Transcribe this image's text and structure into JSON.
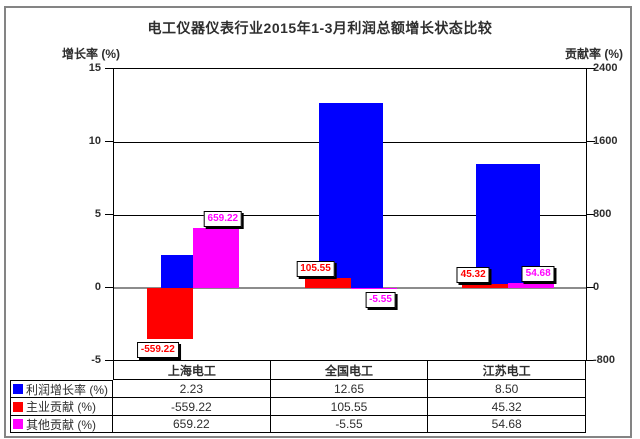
{
  "chart_data": {
    "type": "bar",
    "title": "电工仪器仪表行业2015年1-3月利润总额增长状态比较",
    "categories": [
      "上海电工",
      "全国电工",
      "江苏电工"
    ],
    "series": [
      {
        "name": "利润增长率 (%)",
        "color": "#0000ff",
        "axis": "left",
        "values": [
          2.23,
          12.65,
          8.5
        ],
        "value_labels_shown": false
      },
      {
        "name": "主业贡献 (%)",
        "color": "#ff0000",
        "axis": "right",
        "values": [
          -559.22,
          105.55,
          45.32
        ],
        "value_labels_shown": true
      },
      {
        "name": "其他贡献 (%)",
        "color": "#ff00ff",
        "axis": "right",
        "values": [
          659.22,
          -5.55,
          54.68
        ],
        "value_labels_shown": true
      }
    ],
    "left_axis": {
      "label": "增长率 (%)",
      "ticks": [
        15,
        10,
        5,
        0,
        -5
      ],
      "range": [
        -5,
        15
      ]
    },
    "right_axis": {
      "label": "贡献率 (%)",
      "ticks": [
        2400,
        1600,
        800,
        0,
        -800
      ],
      "range": [
        -800,
        2400
      ]
    },
    "grid": true,
    "legend_position": "table-bottom-left",
    "value_label_format": "0.00"
  }
}
